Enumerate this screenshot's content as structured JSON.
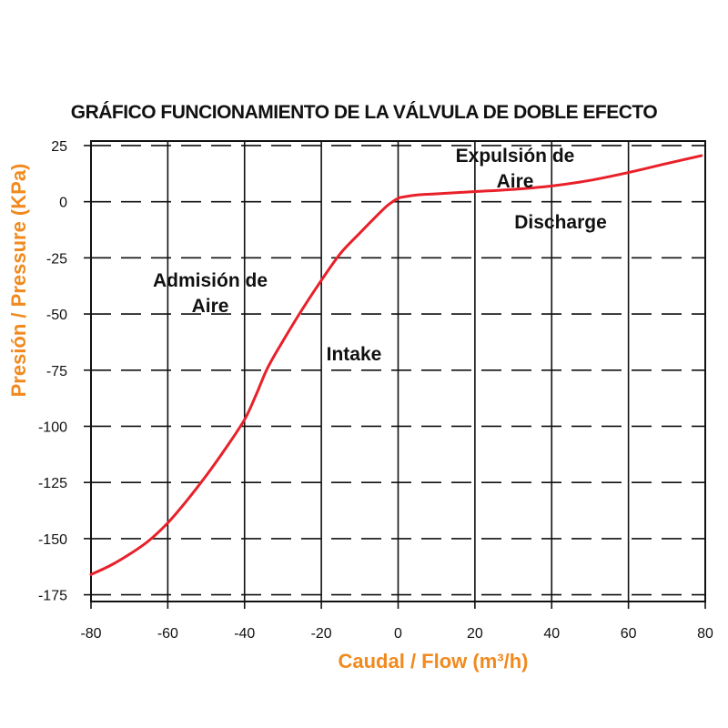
{
  "chart_data": {
    "type": "line",
    "title": "GRÁFICO FUNCIONAMIENTO DE LA VÁLVULA DE DOBLE EFECTO",
    "xlabel": "Caudal / Flow (m³/h)",
    "ylabel": "Presión / Pressure (KPa)",
    "xlim": [
      -80,
      80
    ],
    "ylim": [
      -178,
      27
    ],
    "x_ticks": [
      -80,
      -60,
      -40,
      -20,
      0,
      20,
      40,
      60,
      80
    ],
    "y_ticks": [
      25,
      0,
      -25,
      -50,
      -75,
      -100,
      -125,
      -150,
      -175
    ],
    "grid": true,
    "series": [
      {
        "color": "#e8202a",
        "x": [
          -80,
          -75,
          -70,
          -65,
          -60,
          -55,
          -50,
          -45,
          -40,
          -37,
          -34,
          -30,
          -25,
          -20,
          -15,
          -10,
          -6,
          -3,
          -1,
          0,
          1,
          5,
          10,
          20,
          30,
          40,
          50,
          60,
          70,
          79
        ],
        "y": [
          -166,
          -162,
          -157,
          -151,
          -143,
          -133,
          -122,
          -110,
          -97,
          -86,
          -74,
          -62,
          -48,
          -35,
          -23,
          -14,
          -7,
          -2,
          0.5,
          1.5,
          2,
          3,
          3.5,
          4.5,
          5.5,
          7,
          9.5,
          13,
          17,
          20.5
        ]
      }
    ],
    "annotations": [
      {
        "lines": [
          "Expulsión de",
          "Aire"
        ]
      },
      {
        "lines": [
          "Discharge"
        ]
      },
      {
        "lines": [
          "Admisión de",
          "Aire"
        ]
      },
      {
        "lines": [
          "Intake"
        ]
      }
    ]
  }
}
